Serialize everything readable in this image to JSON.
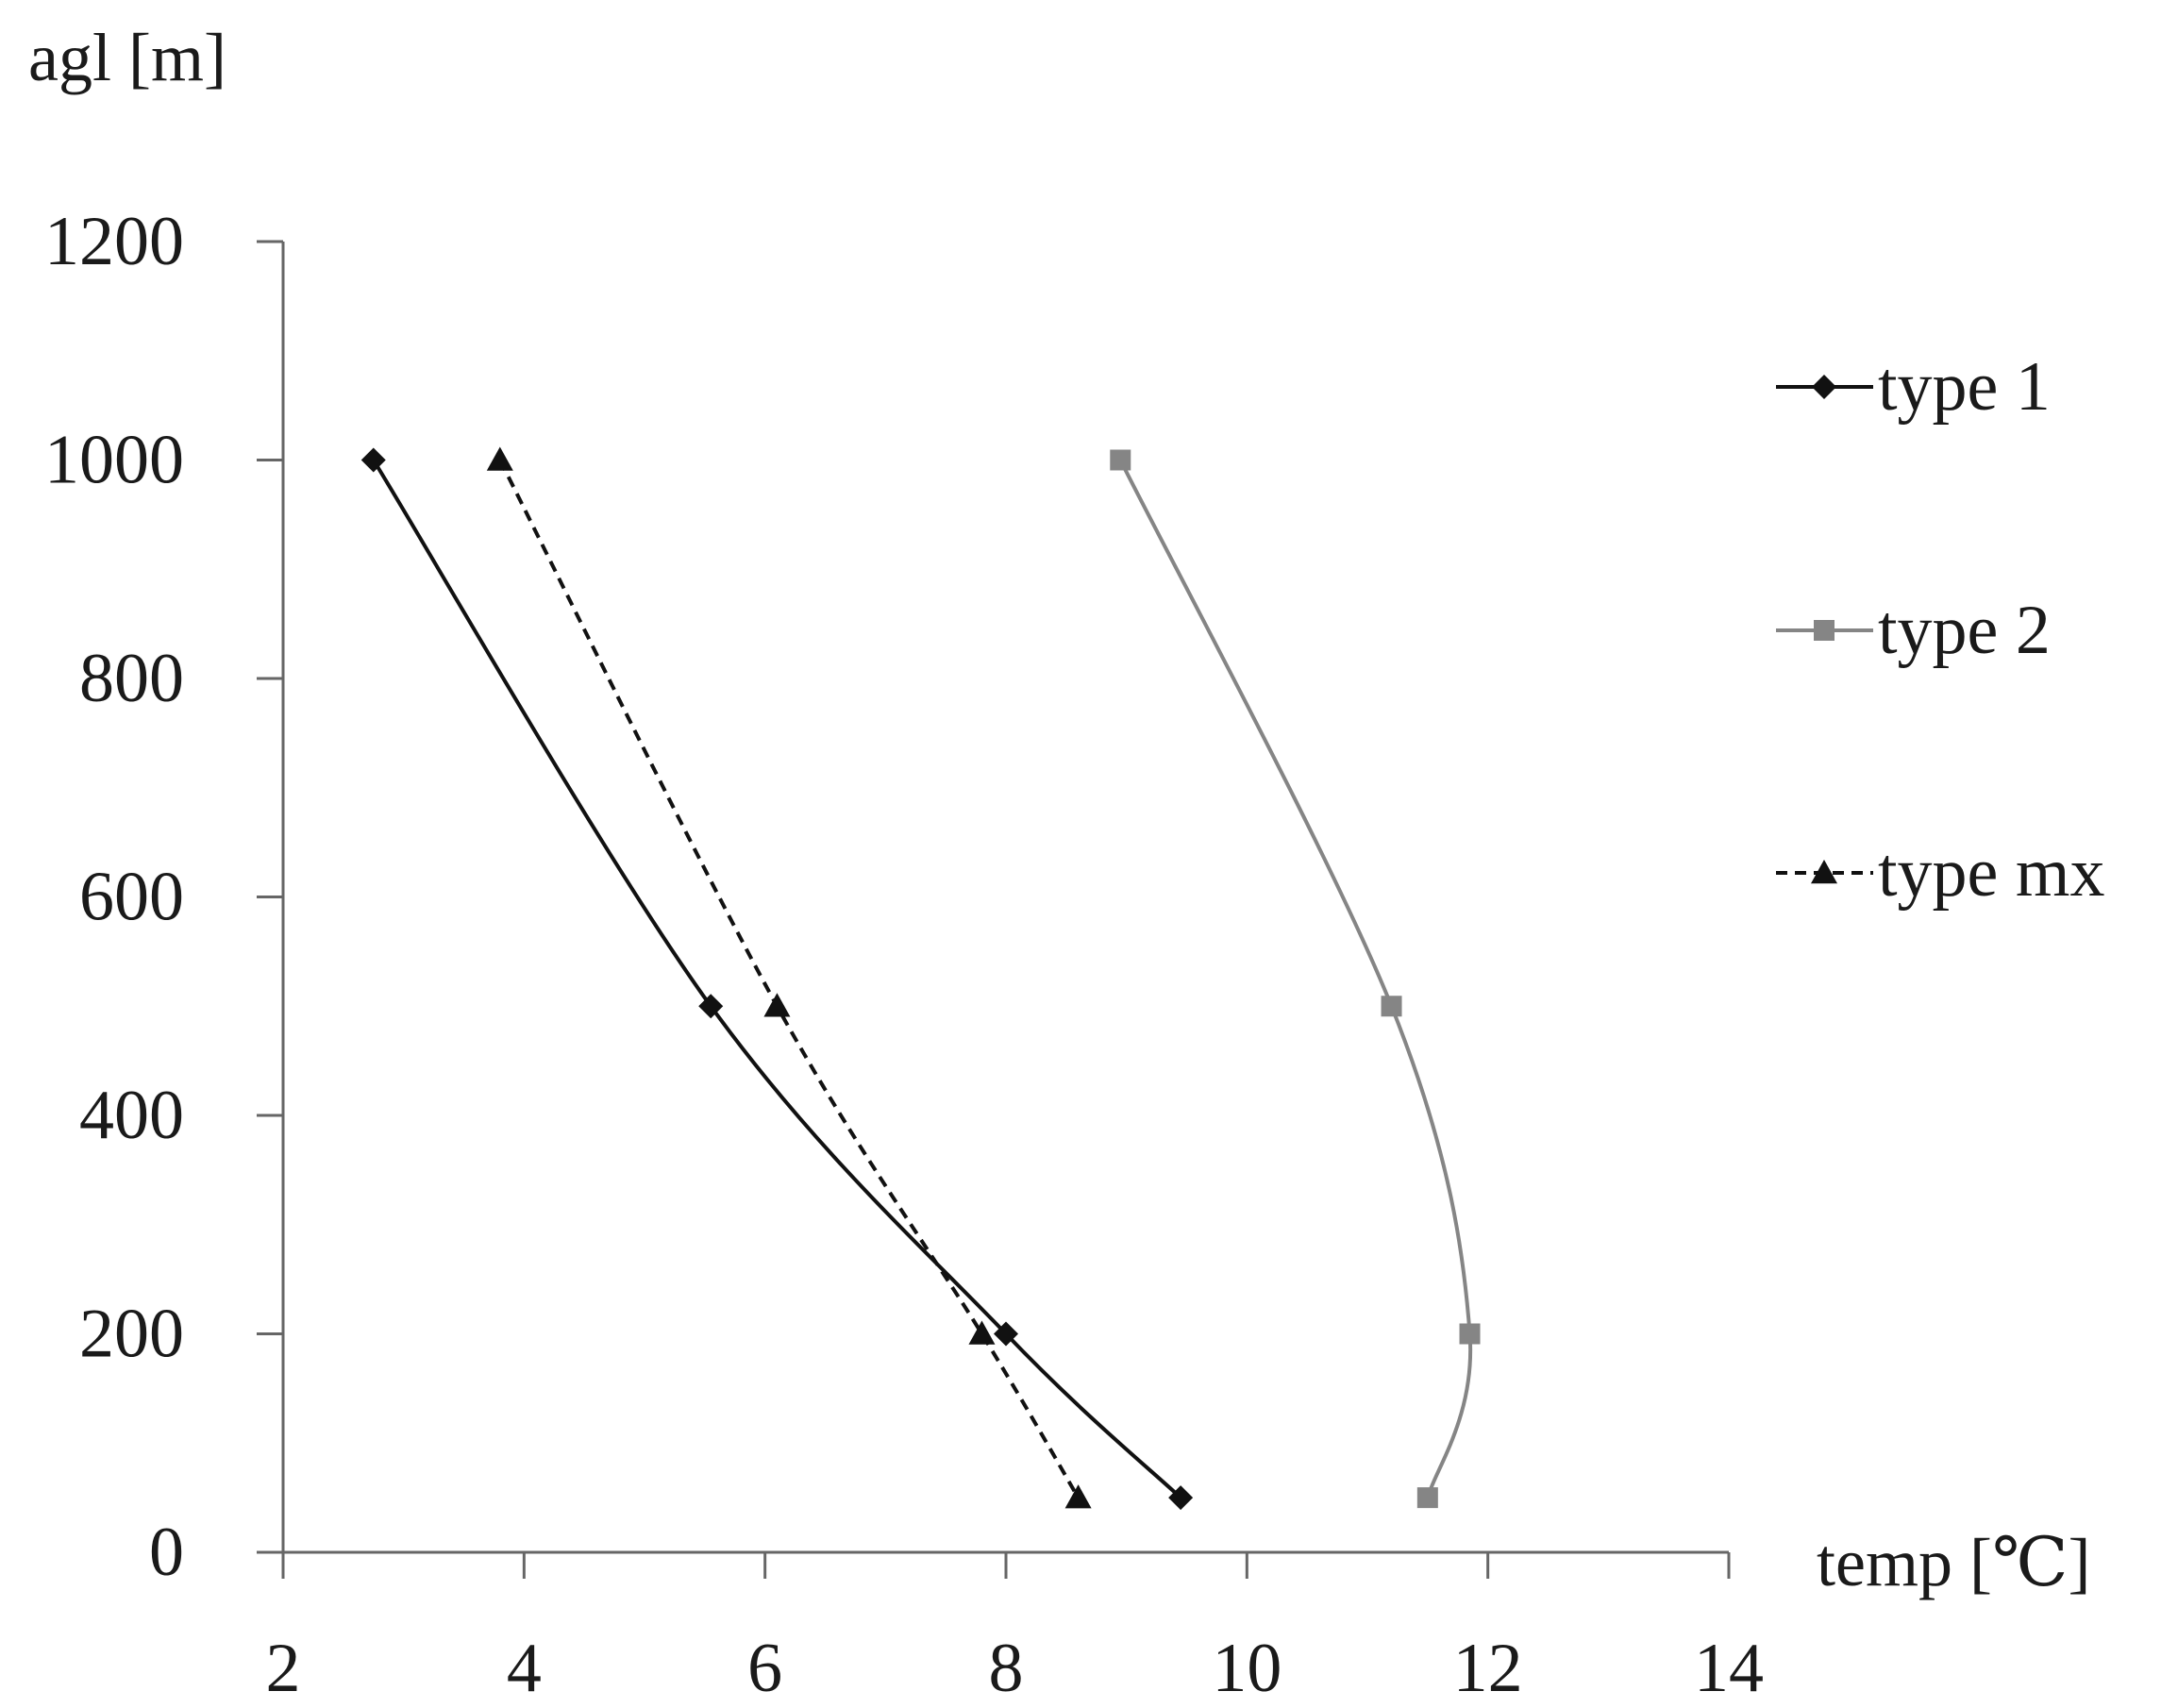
{
  "chart_data": {
    "type": "line",
    "title": "",
    "xlabel": "temp [℃]",
    "ylabel": "agl [m]",
    "xlim": [
      2,
      14
    ],
    "ylim": [
      0,
      1200
    ],
    "x_ticks": [
      "2",
      "4",
      "6",
      "8",
      "10",
      "12",
      "14"
    ],
    "y_ticks": [
      "0",
      "200",
      "400",
      "600",
      "800",
      "1000",
      "1200"
    ],
    "grid": false,
    "legend_position": "right",
    "series": [
      {
        "name": "type 1",
        "color": "#111111",
        "marker": "diamond",
        "dash": "solid",
        "points": [
          {
            "x": 2.75,
            "y": 1000
          },
          {
            "x": 5.55,
            "y": 500
          },
          {
            "x": 8.0,
            "y": 200
          },
          {
            "x": 9.45,
            "y": 50
          }
        ]
      },
      {
        "name": "type 2",
        "color": "#858585",
        "marker": "square",
        "dash": "solid",
        "points": [
          {
            "x": 8.95,
            "y": 1000
          },
          {
            "x": 11.2,
            "y": 500
          },
          {
            "x": 11.85,
            "y": 200
          },
          {
            "x": 11.5,
            "y": 50
          }
        ]
      },
      {
        "name": "type mx",
        "color": "#111111",
        "marker": "triangle",
        "dash": "dashed",
        "points": [
          {
            "x": 3.8,
            "y": 1000
          },
          {
            "x": 6.1,
            "y": 500
          },
          {
            "x": 7.8,
            "y": 200
          },
          {
            "x": 8.6,
            "y": 50
          }
        ]
      }
    ]
  }
}
